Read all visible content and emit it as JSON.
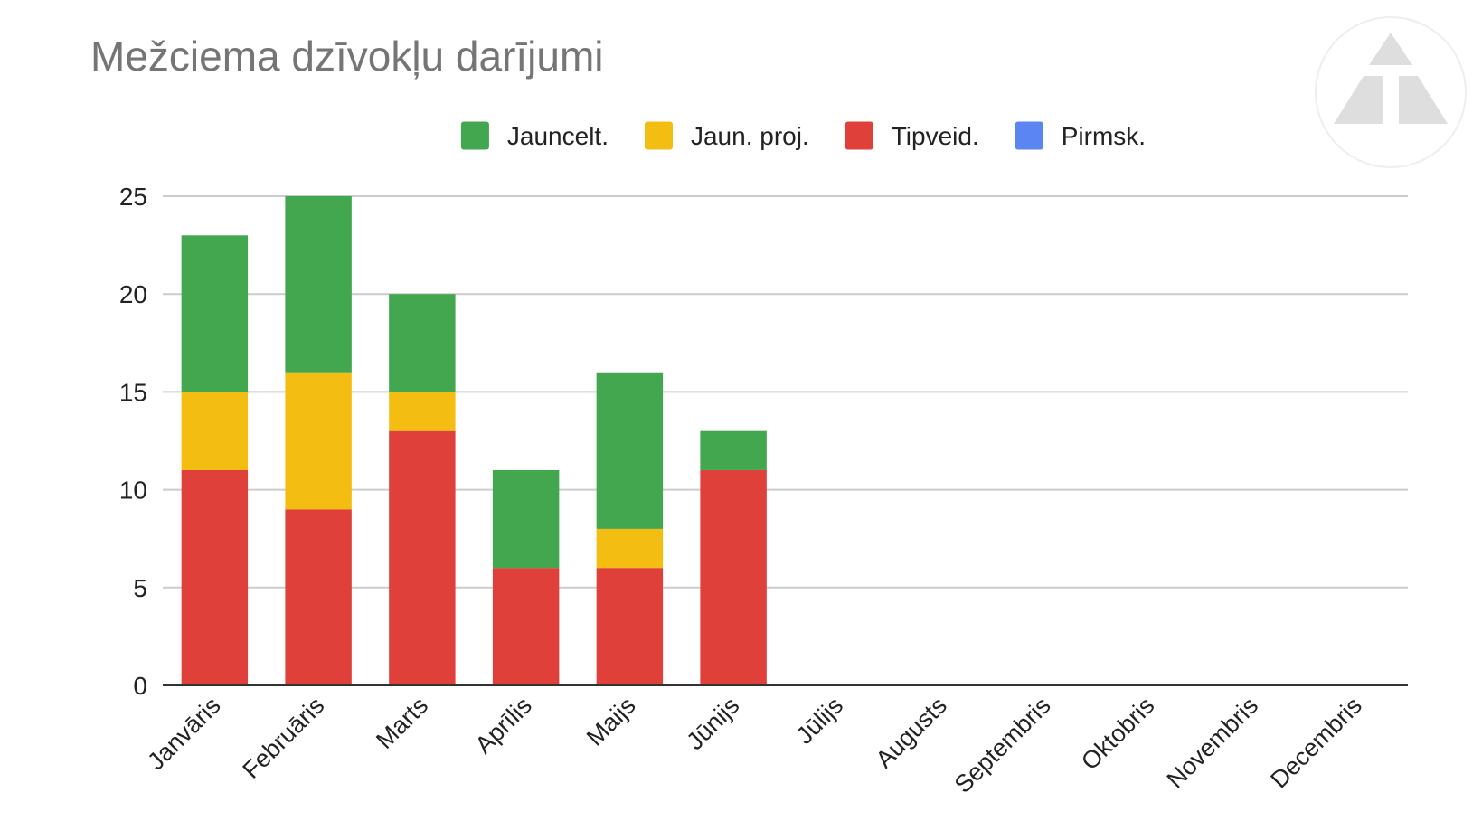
{
  "chart_data": {
    "type": "bar",
    "stacked": true,
    "title": "Mežciema dzīvokļu darījumi",
    "xlabel": "",
    "ylabel": "",
    "ylim": [
      0,
      25
    ],
    "yticks": [
      0,
      5,
      10,
      15,
      20,
      25
    ],
    "grid": true,
    "legend_position": "top",
    "categories": [
      "Janvāris",
      "Februāris",
      "Marts",
      "Aprīlis",
      "Maijs",
      "Jūnijs",
      "Jūlijs",
      "Augusts",
      "Septembris",
      "Oktobris",
      "Novembris",
      "Decembris"
    ],
    "series": [
      {
        "name": "Jauncelt.",
        "color": "#43a74f",
        "values": [
          8,
          9,
          5,
          5,
          8,
          2,
          0,
          0,
          0,
          0,
          0,
          0
        ]
      },
      {
        "name": "Jaun. proj.",
        "color": "#f4bd12",
        "values": [
          4,
          7,
          2,
          0,
          2,
          0,
          0,
          0,
          0,
          0,
          0,
          0
        ]
      },
      {
        "name": "Tipveid.",
        "color": "#e0403a",
        "values": [
          11,
          9,
          13,
          6,
          6,
          11,
          0,
          0,
          0,
          0,
          0,
          0
        ]
      },
      {
        "name": "Pirmsk.",
        "color": "#5b86f1",
        "values": [
          0,
          0,
          0,
          0,
          0,
          0,
          0,
          0,
          0,
          0,
          0,
          0
        ]
      }
    ],
    "logo_icon": "triangle-logo-icon"
  }
}
